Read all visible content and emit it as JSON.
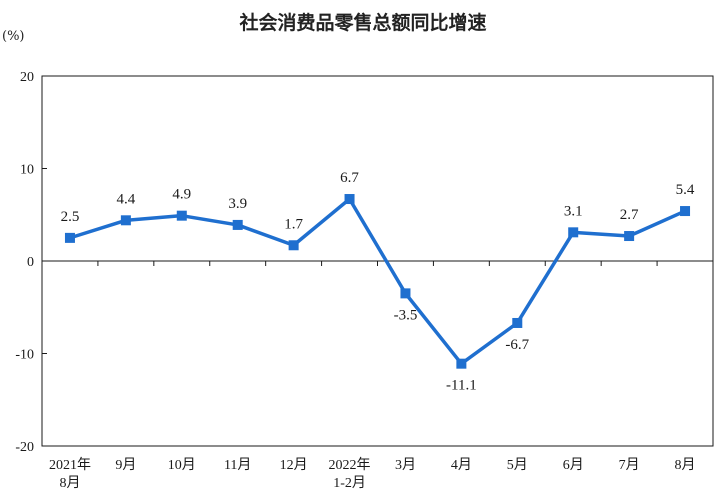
{
  "chart_data": {
    "type": "line",
    "title": "社会消费品零售总额同比增速",
    "ylabel": "(%)",
    "xlabel": "",
    "ylim": [
      -20,
      20
    ],
    "y_ticks": [
      "20",
      "10",
      "0",
      "-10",
      "-20"
    ],
    "y_tick_values": [
      20,
      10,
      0,
      -10,
      -20
    ],
    "grid": false,
    "categories": [
      [
        "2021年",
        "8月"
      ],
      [
        "9月"
      ],
      [
        "10月"
      ],
      [
        "11月"
      ],
      [
        "12月"
      ],
      [
        "2022年",
        "1-2月"
      ],
      [
        "3月"
      ],
      [
        "4月"
      ],
      [
        "5月"
      ],
      [
        "6月"
      ],
      [
        "7月"
      ],
      [
        "8月"
      ]
    ],
    "series": [
      {
        "values": [
          2.5,
          4.4,
          4.9,
          3.9,
          1.7,
          6.7,
          -3.5,
          -11.1,
          -6.7,
          3.1,
          2.7,
          5.4
        ],
        "labels": [
          "2.5",
          "4.4",
          "4.9",
          "3.9",
          "1.7",
          "6.7",
          "-3.5",
          "-11.1",
          "-6.7",
          "3.1",
          "2.7",
          "5.4"
        ],
        "label_position": [
          "above",
          "above",
          "above",
          "above",
          "above",
          "above",
          "below",
          "below",
          "below",
          "above",
          "above",
          "above"
        ],
        "color": "#1f6fcf"
      }
    ],
    "axis_color": "#1a1a1a"
  }
}
